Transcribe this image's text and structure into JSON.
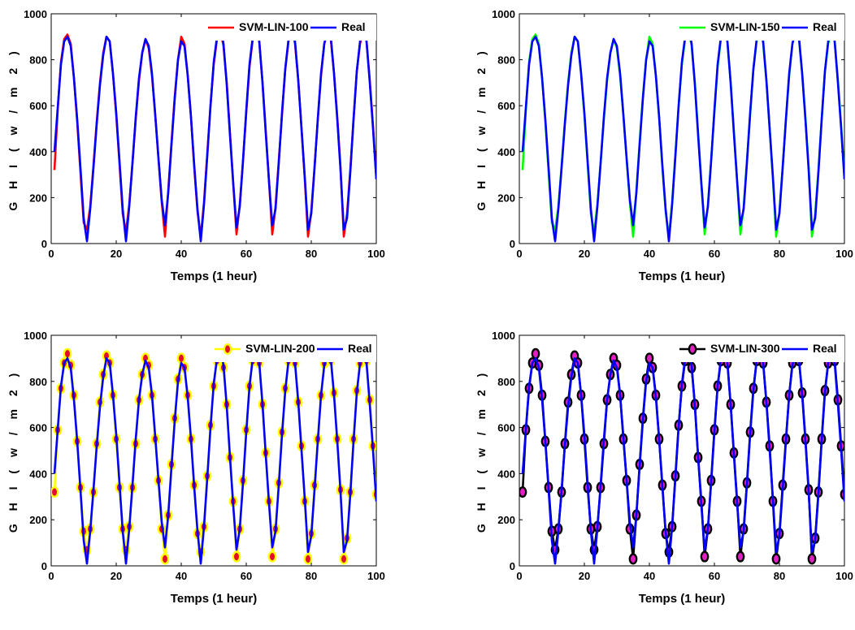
{
  "x": [
    1,
    2,
    3,
    4,
    5,
    6,
    7,
    8,
    9,
    10,
    11,
    12,
    13,
    14,
    15,
    16,
    17,
    18,
    19,
    20,
    21,
    22,
    23,
    24,
    25,
    26,
    27,
    28,
    29,
    30,
    31,
    32,
    33,
    34,
    35,
    36,
    37,
    38,
    39,
    40,
    41,
    42,
    43,
    44,
    45,
    46,
    47,
    48,
    49,
    50,
    51,
    52,
    53,
    54,
    55,
    56,
    57,
    58,
    59,
    60,
    61,
    62,
    63,
    64,
    65,
    66,
    67,
    68,
    69,
    70,
    71,
    72,
    73,
    74,
    75,
    76,
    77,
    78,
    79,
    80,
    81,
    82,
    83,
    84,
    85,
    86,
    87,
    88,
    89,
    90,
    91,
    92,
    93,
    94,
    95,
    96,
    97,
    98,
    99,
    100
  ],
  "real": [
    400,
    590,
    780,
    880,
    900,
    860,
    720,
    540,
    330,
    110,
    10,
    150,
    330,
    520,
    690,
    820,
    900,
    880,
    740,
    570,
    360,
    150,
    10,
    160,
    350,
    550,
    720,
    830,
    890,
    860,
    740,
    560,
    370,
    190,
    80,
    220,
    430,
    630,
    800,
    880,
    860,
    730,
    550,
    340,
    150,
    10,
    170,
    380,
    600,
    790,
    900,
    950,
    870,
    690,
    470,
    260,
    70,
    160,
    360,
    580,
    780,
    900,
    960,
    880,
    700,
    480,
    270,
    80,
    150,
    350,
    570,
    760,
    890,
    950,
    880,
    710,
    500,
    290,
    60,
    130,
    330,
    540,
    740,
    870,
    930,
    900,
    740,
    540,
    320,
    60,
    110,
    310,
    540,
    750,
    880,
    930,
    880,
    700,
    500,
    280
  ],
  "svm100": [
    320,
    580,
    790,
    890,
    910,
    870,
    720,
    530,
    310,
    90,
    60,
    160,
    340,
    530,
    700,
    830,
    900,
    880,
    740,
    560,
    350,
    130,
    50,
    170,
    350,
    540,
    710,
    830,
    890,
    850,
    730,
    560,
    370,
    180,
    30,
    230,
    440,
    640,
    800,
    900,
    870,
    730,
    550,
    330,
    140,
    30,
    180,
    390,
    600,
    780,
    890,
    930,
    860,
    700,
    480,
    260,
    40,
    170,
    360,
    570,
    770,
    890,
    950,
    880,
    700,
    490,
    270,
    40,
    160,
    360,
    560,
    760,
    880,
    940,
    870,
    710,
    500,
    280,
    30,
    140,
    330,
    540,
    730,
    870,
    920,
    890,
    740,
    550,
    330,
    30,
    130,
    320,
    540,
    750,
    870,
    920,
    880,
    710,
    510,
    290
  ],
  "svm150": [
    320,
    580,
    790,
    890,
    910,
    870,
    720,
    530,
    310,
    90,
    60,
    160,
    340,
    530,
    700,
    830,
    900,
    880,
    740,
    560,
    350,
    130,
    50,
    170,
    350,
    540,
    710,
    830,
    890,
    850,
    730,
    560,
    370,
    180,
    30,
    230,
    440,
    640,
    800,
    900,
    870,
    730,
    550,
    330,
    140,
    30,
    180,
    390,
    600,
    780,
    890,
    930,
    860,
    700,
    480,
    260,
    40,
    170,
    360,
    570,
    770,
    890,
    950,
    880,
    700,
    490,
    270,
    40,
    160,
    360,
    560,
    760,
    880,
    940,
    870,
    710,
    500,
    280,
    30,
    140,
    330,
    540,
    730,
    870,
    920,
    890,
    740,
    550,
    330,
    30,
    130,
    320,
    540,
    750,
    870,
    920,
    880,
    710,
    510,
    290
  ],
  "svm200": [
    320,
    590,
    770,
    880,
    920,
    870,
    740,
    540,
    340,
    150,
    70,
    160,
    320,
    530,
    710,
    830,
    910,
    880,
    740,
    550,
    340,
    160,
    70,
    170,
    340,
    530,
    720,
    830,
    900,
    870,
    740,
    550,
    370,
    160,
    30,
    220,
    440,
    640,
    810,
    900,
    860,
    740,
    550,
    350,
    140,
    60,
    170,
    390,
    610,
    780,
    890,
    930,
    860,
    700,
    470,
    280,
    40,
    160,
    370,
    590,
    780,
    890,
    960,
    880,
    700,
    490,
    280,
    40,
    160,
    360,
    580,
    770,
    890,
    950,
    880,
    710,
    520,
    280,
    30,
    140,
    350,
    550,
    740,
    880,
    940,
    890,
    750,
    550,
    330,
    30,
    120,
    320,
    550,
    760,
    880,
    930,
    890,
    720,
    520,
    310
  ],
  "svm300": [
    320,
    590,
    770,
    880,
    920,
    870,
    740,
    540,
    340,
    150,
    70,
    160,
    320,
    530,
    710,
    830,
    910,
    880,
    740,
    550,
    340,
    160,
    70,
    170,
    340,
    530,
    720,
    830,
    900,
    870,
    740,
    550,
    370,
    160,
    30,
    220,
    440,
    640,
    810,
    900,
    860,
    740,
    550,
    350,
    140,
    60,
    170,
    390,
    610,
    780,
    890,
    930,
    860,
    700,
    470,
    280,
    40,
    160,
    370,
    590,
    780,
    890,
    960,
    880,
    700,
    490,
    280,
    40,
    160,
    360,
    580,
    770,
    890,
    950,
    880,
    710,
    520,
    280,
    30,
    140,
    350,
    550,
    740,
    880,
    940,
    890,
    750,
    550,
    330,
    30,
    120,
    320,
    550,
    760,
    880,
    930,
    890,
    720,
    520,
    310
  ],
  "chart_data": [
    {
      "type": "line",
      "xlabel": "Temps (1 heur)",
      "ylabel": "G H I ( w / m 2 )",
      "xlim": [
        0,
        100
      ],
      "ylim": [
        0,
        1000
      ],
      "xticks": [
        "0",
        "20",
        "40",
        "60",
        "80",
        "100"
      ],
      "yticks": [
        "0",
        "200",
        "400",
        "600",
        "800",
        "1000"
      ],
      "legend_position": "top-right",
      "series": [
        {
          "name": "SVM-LIN-100",
          "color": "#ff0000",
          "marker": "none",
          "data": "svm100"
        },
        {
          "name": "Real",
          "color": "#0000ff",
          "marker": "none",
          "data": "real"
        }
      ]
    },
    {
      "type": "line",
      "xlabel": "Temps (1 heur)",
      "ylabel": "G H I ( w / m 2 )",
      "xlim": [
        0,
        100
      ],
      "ylim": [
        0,
        1000
      ],
      "xticks": [
        "0",
        "20",
        "40",
        "60",
        "80",
        "100"
      ],
      "yticks": [
        "0",
        "200",
        "400",
        "600",
        "800",
        "1000"
      ],
      "legend_position": "top-right",
      "series": [
        {
          "name": "SVM-LIN-150",
          "color": "#00ff00",
          "marker": "none",
          "data": "svm150"
        },
        {
          "name": "Real",
          "color": "#0000ff",
          "marker": "none",
          "data": "real"
        }
      ]
    },
    {
      "type": "line",
      "xlabel": "Temps (1 heur)",
      "ylabel": "G H I ( w / m 2 )",
      "xlim": [
        0,
        100
      ],
      "ylim": [
        0,
        1000
      ],
      "xticks": [
        "0",
        "20",
        "40",
        "60",
        "80",
        "100"
      ],
      "yticks": [
        "0",
        "200",
        "400",
        "600",
        "800",
        "1000"
      ],
      "legend_position": "top-right",
      "series": [
        {
          "name": "SVM-LIN-200",
          "color": "#ffff00",
          "marker": "circle",
          "marker_fill": "#e0102a",
          "data": "svm200"
        },
        {
          "name": "Real",
          "color": "#0000ff",
          "marker": "none",
          "data": "real"
        }
      ]
    },
    {
      "type": "line",
      "xlabel": "Temps (1 heur)",
      "ylabel": "G H I ( w / m 2 )",
      "xlim": [
        0,
        100
      ],
      "ylim": [
        0,
        1000
      ],
      "xticks": [
        "0",
        "20",
        "40",
        "60",
        "80",
        "100"
      ],
      "yticks": [
        "0",
        "200",
        "400",
        "600",
        "800",
        "1000"
      ],
      "legend_position": "top-right",
      "series": [
        {
          "name": "SVM-LIN-300",
          "color": "#000000",
          "marker": "circle",
          "marker_fill": "#e020c0",
          "data": "svm300"
        },
        {
          "name": "Real",
          "color": "#0000ff",
          "marker": "none",
          "data": "real"
        }
      ]
    }
  ]
}
